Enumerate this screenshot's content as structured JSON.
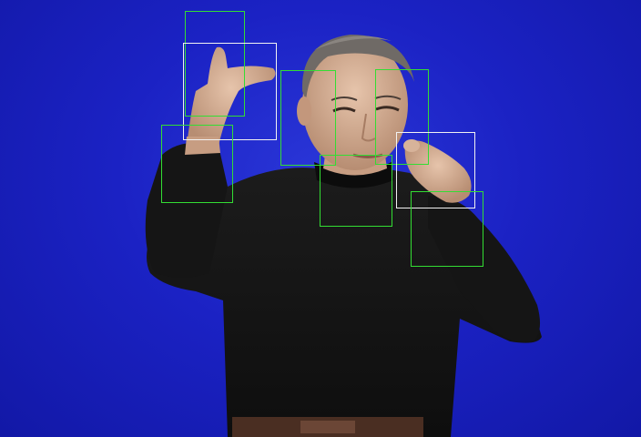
{
  "scene": {
    "background_color": "#1b22c4",
    "subject": "person-signing",
    "sweater_color": "#141414",
    "skin_color": "#d9b49a"
  },
  "annotation_boxes": {
    "primary_color": "#33dd33",
    "secondary_color": "#f2f2f2",
    "count": 9
  }
}
